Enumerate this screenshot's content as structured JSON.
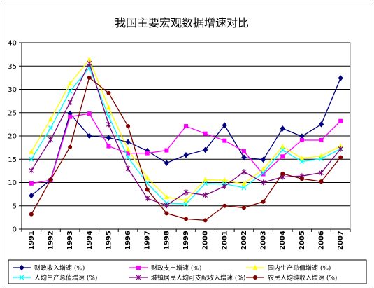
{
  "chart_data": {
    "type": "line",
    "title": "我国主要宏观数据增速对比",
    "xlabel": "",
    "ylabel": "",
    "categories": [
      "1991",
      "1992",
      "1993",
      "1994",
      "1995",
      "1996",
      "1997",
      "1998",
      "1999",
      "2000",
      "2001",
      "2002",
      "2003",
      "2004",
      "2005",
      "2006",
      "2007"
    ],
    "ylim": [
      0,
      40
    ],
    "yticks": [
      0,
      5,
      10,
      15,
      20,
      25,
      30,
      35,
      40
    ],
    "grid": true,
    "legend_position": "bottom",
    "series": [
      {
        "name": "财政收入增速 (%)",
        "color": "#000080",
        "marker": "diamond",
        "values": [
          7.2,
          10.6,
          24.8,
          20.0,
          19.6,
          18.7,
          16.8,
          14.2,
          15.9,
          17.0,
          22.3,
          15.4,
          14.9,
          21.6,
          19.9,
          22.5,
          32.4
        ]
      },
      {
        "name": "财政支出增速 (%)",
        "color": "#ff00ff",
        "marker": "square",
        "values": [
          9.8,
          10.5,
          24.1,
          24.8,
          17.8,
          16.3,
          16.3,
          16.9,
          22.1,
          20.5,
          19.0,
          16.7,
          11.8,
          15.6,
          19.1,
          19.1,
          23.2
        ]
      },
      {
        "name": "国内生产总值增速 (%)",
        "color": "#ffff00",
        "marker": "triangle",
        "values": [
          16.6,
          23.6,
          31.2,
          36.4,
          26.1,
          17.1,
          11.0,
          6.9,
          6.2,
          10.6,
          10.5,
          9.7,
          12.9,
          17.7,
          15.2,
          15.7,
          17.8
        ]
      },
      {
        "name": "人均生产总值增速 (%)",
        "color": "#00ffff",
        "marker": "x",
        "values": [
          15.0,
          21.7,
          29.6,
          34.6,
          24.2,
          15.4,
          9.8,
          5.6,
          5.4,
          9.8,
          9.7,
          8.9,
          12.1,
          17.0,
          14.5,
          15.1,
          17.2
        ]
      },
      {
        "name": "城镇居民人均可支配收入增速 (%)",
        "color": "#800080",
        "marker": "star",
        "values": [
          12.6,
          19.2,
          27.2,
          35.6,
          22.5,
          13.0,
          6.6,
          5.1,
          7.9,
          7.3,
          9.2,
          12.3,
          10.0,
          11.2,
          11.4,
          12.1,
          17.2
        ]
      },
      {
        "name": "农民人均纯收入增速 (%)",
        "color": "#800000",
        "marker": "circle",
        "values": [
          3.2,
          10.6,
          17.6,
          32.5,
          29.2,
          22.1,
          8.5,
          3.4,
          2.2,
          1.9,
          5.0,
          4.6,
          5.9,
          11.9,
          10.8,
          10.2,
          15.4
        ]
      }
    ]
  }
}
